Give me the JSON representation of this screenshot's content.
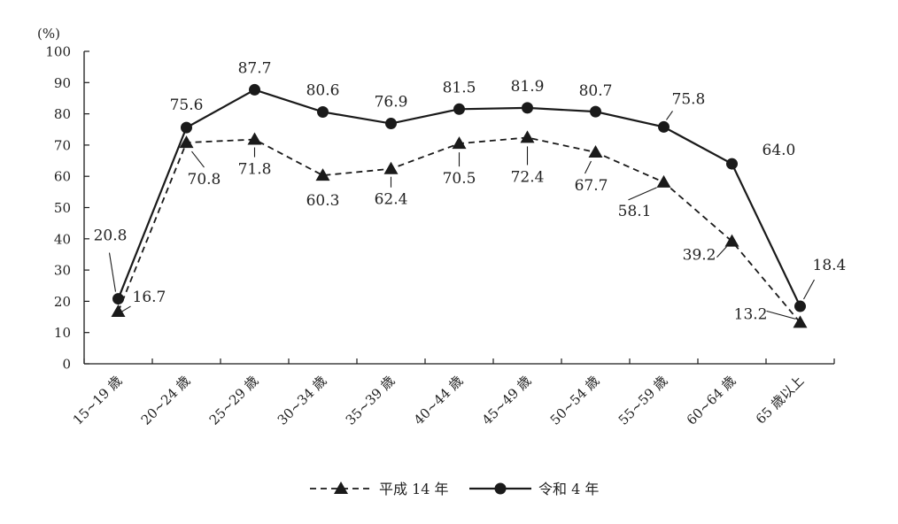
{
  "chart_data": {
    "type": "line",
    "ylabel": "(%)",
    "ylim": [
      0,
      100
    ],
    "yticks": [
      0,
      10,
      20,
      30,
      40,
      50,
      60,
      70,
      80,
      90,
      100
    ],
    "categories": [
      "15~19 歳",
      "20~24 歳",
      "25~29 歳",
      "30~34 歳",
      "35~39 歳",
      "40~44 歳",
      "45~49 歳",
      "50~54 歳",
      "55~59 歳",
      "60~64 歳",
      "65 歳以上"
    ],
    "series": [
      {
        "name": "平成 14 年",
        "marker": "triangle",
        "line_style": "dashed",
        "values": [
          16.7,
          70.8,
          71.8,
          60.3,
          62.4,
          70.5,
          72.4,
          67.7,
          58.1,
          39.2,
          13.2
        ],
        "labels": [
          "16.7",
          "70.8",
          "71.8",
          "60.3",
          "62.4",
          "70.5",
          "72.4",
          "67.7",
          "58.1",
          "39.2",
          "13.2"
        ]
      },
      {
        "name": "令和 4 年",
        "marker": "circle",
        "line_style": "solid",
        "values": [
          20.8,
          75.6,
          87.7,
          80.6,
          76.9,
          81.5,
          81.9,
          80.7,
          75.8,
          64.0,
          18.4
        ],
        "labels": [
          "20.8",
          "75.6",
          "87.7",
          "80.6",
          "76.9",
          "81.5",
          "81.9",
          "80.7",
          "75.8",
          "64.0",
          "18.4"
        ]
      }
    ],
    "grid": false,
    "legend_position": "bottom",
    "colors": {
      "line": "#1a1a1a"
    }
  }
}
